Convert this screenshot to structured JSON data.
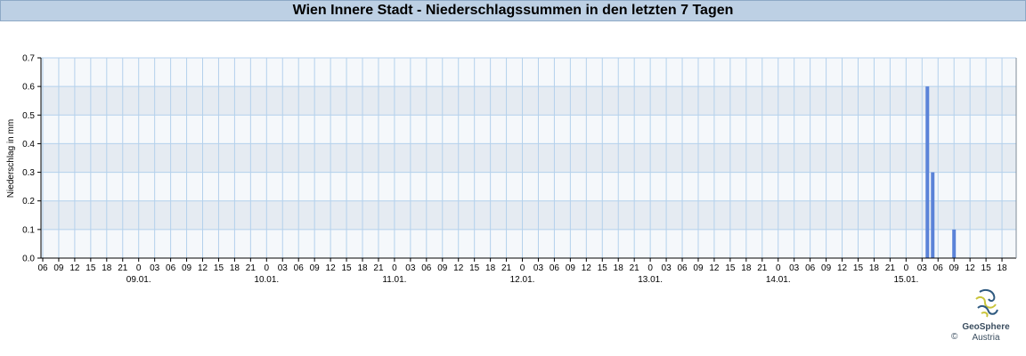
{
  "header": {
    "title": "Wien Innere Stadt - Niederschlagssummen in den letzten 7 Tagen"
  },
  "logo": {
    "brand": "GeoSphere",
    "sub": "Austria",
    "copyright": "©"
  },
  "colors": {
    "bar": "#5b83d8",
    "band_light": "#f5f8fb",
    "band_dark": "#e5ebf2",
    "grid": "#b4d1ec",
    "title_bg": "#bdd0e4"
  },
  "chart_data": {
    "type": "bar",
    "title": "Wien Innere Stadt - Niederschlagssummen in den letzten 7 Tagen",
    "xlabel": "",
    "ylabel": "Niederschlag in mm",
    "ylim": [
      0,
      0.7
    ],
    "yticks": [
      "0.0",
      "0.1",
      "0.2",
      "0.3",
      "0.4",
      "0.5",
      "0.6",
      "0.7"
    ],
    "x_tick_labels": [
      "06",
      "09",
      "12",
      "15",
      "18",
      "21",
      "0",
      "03",
      "06",
      "09",
      "12",
      "15",
      "18",
      "21",
      "0",
      "03",
      "06",
      "09",
      "12",
      "15",
      "18",
      "21",
      "0",
      "03",
      "06",
      "09",
      "12",
      "15",
      "18",
      "21",
      "0",
      "03",
      "06",
      "09",
      "12",
      "15",
      "18",
      "21",
      "0",
      "03",
      "06",
      "09",
      "12",
      "15",
      "18",
      "21",
      "0",
      "03",
      "06",
      "09",
      "12",
      "15",
      "18",
      "21",
      "0",
      "03",
      "06",
      "09",
      "12",
      "15",
      "18"
    ],
    "day_labels": [
      {
        "label": "09.01.",
        "tick_index": 6
      },
      {
        "label": "10.01.",
        "tick_index": 14
      },
      {
        "label": "11.01.",
        "tick_index": 22
      },
      {
        "label": "12.01.",
        "tick_index": 30
      },
      {
        "label": "13.01.",
        "tick_index": 38
      },
      {
        "label": "14.01.",
        "tick_index": 46
      },
      {
        "label": "15.01.",
        "tick_index": 54
      }
    ],
    "grid": true,
    "bars": [
      {
        "date": "15.01.",
        "hour": 4,
        "value": 0.6
      },
      {
        "date": "15.01.",
        "hour": 5,
        "value": 0.3
      },
      {
        "date": "15.01.",
        "hour": 9,
        "value": 0.1
      }
    ]
  }
}
